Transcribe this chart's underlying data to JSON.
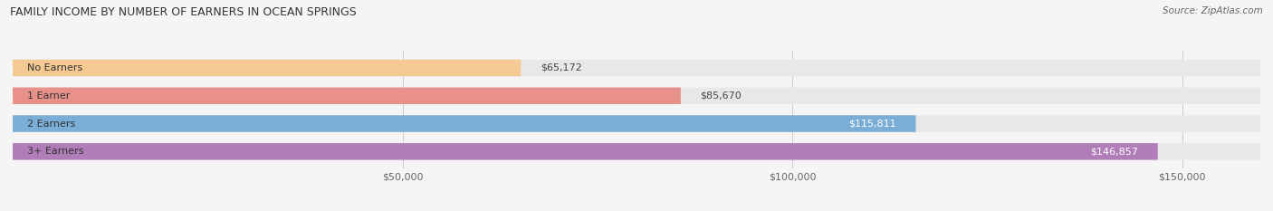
{
  "title": "FAMILY INCOME BY NUMBER OF EARNERS IN OCEAN SPRINGS",
  "source": "Source: ZipAtlas.com",
  "categories": [
    "No Earners",
    "1 Earner",
    "2 Earners",
    "3+ Earners"
  ],
  "values": [
    65172,
    85670,
    115811,
    146857
  ],
  "bar_colors": [
    "#f5c992",
    "#e8918a",
    "#7aaed6",
    "#b07db8"
  ],
  "bar_bg_color": "#e8e8e8",
  "value_labels": [
    "$65,172",
    "$85,670",
    "$115,811",
    "$146,857"
  ],
  "value_label_dark": [
    true,
    true,
    false,
    false
  ],
  "xlim_max": 160000,
  "xticks": [
    50000,
    100000,
    150000
  ],
  "xtick_labels": [
    "$50,000",
    "$100,000",
    "$150,000"
  ],
  "figsize": [
    14.06,
    2.33
  ],
  "dpi": 100,
  "bg_color": "#f5f5f5",
  "title_fontsize": 9,
  "label_fontsize": 8,
  "value_fontsize": 8,
  "bar_height": 0.6
}
